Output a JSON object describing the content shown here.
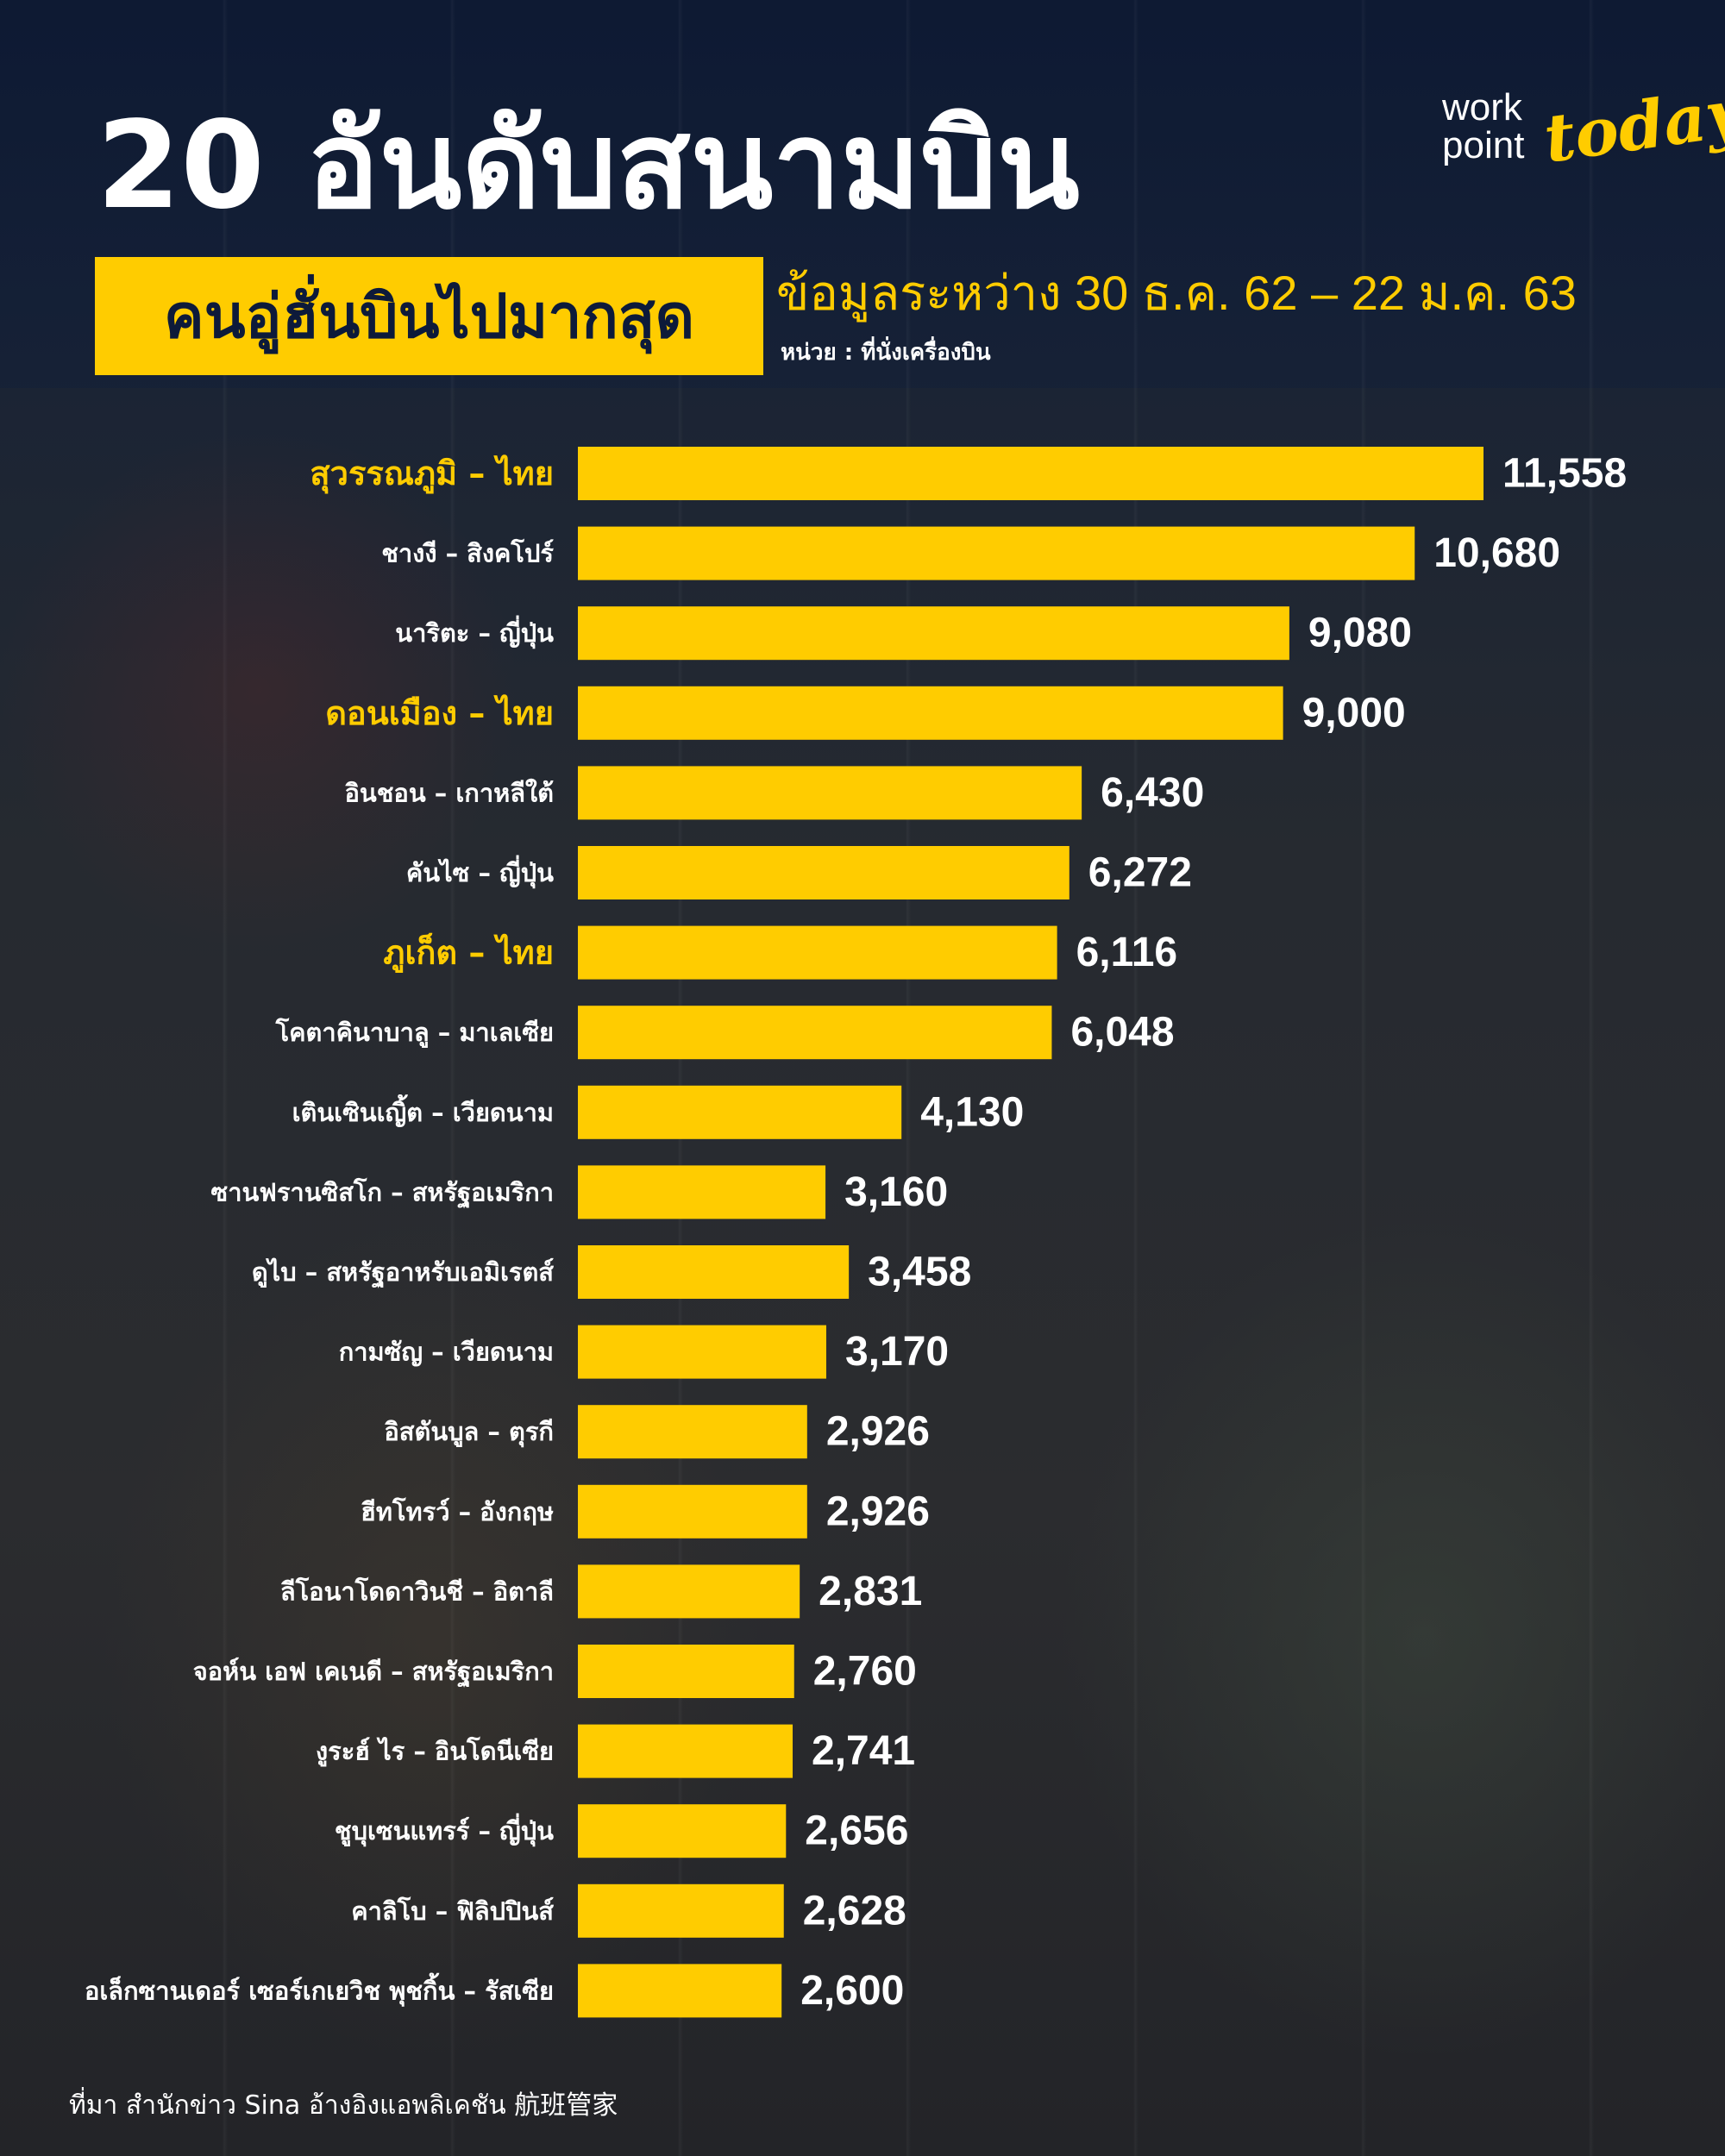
{
  "header": {
    "title": "20 อันดับสนามบิน",
    "subtitle": "คนอู่ฮั่นบินไปมากสุด",
    "period": "ข้อมูลระหว่าง 30 ธ.ค. 62 – 22 ม.ค. 63",
    "unit": "หน่วย : ที่นั่งเครื่องบิน"
  },
  "logo": {
    "work": "work",
    "point": "point",
    "today": "today"
  },
  "footer": {
    "source": "ที่มา สำนักข่าว Sina อ้างอิงแอพลิเคชัน 航班管家"
  },
  "colors": {
    "accent": "#ffcc00",
    "bar": "#ffcc00",
    "label": "#ffffff",
    "highlight_label": "#ffcc00",
    "value": "#ffffff"
  },
  "chart_data": {
    "type": "bar",
    "orientation": "horizontal",
    "title": "20 อันดับสนามบิน คนอู่ฮั่นบินไปมากสุด",
    "xlabel": "",
    "ylabel": "",
    "xlim": [
      0,
      11558
    ],
    "grid": false,
    "legend": "none",
    "categories": [
      "สุวรรณภูมิ – ไทย",
      "ชางงี – สิงคโปร์",
      "นาริตะ – ญี่ปุ่น",
      "ดอนเมือง – ไทย",
      "อินชอน – เกาหลีใต้",
      "คันไซ – ญี่ปุ่น",
      "ภูเก็ต – ไทย",
      "โคตาคินาบาลู – มาเลเซีย",
      "เตินเซินเญิ้ต – เวียดนาม",
      "ซานฟรานซิสโก – สหรัฐอเมริกา",
      "ดูไบ – สหรัฐอาหรับเอมิเรตส์",
      "กามซัญ – เวียดนาม",
      "อิสตันบูล – ตุรกี",
      "ฮีทโทรว์ – อังกฤษ",
      "ลีโอนาโดดาวินชี – อิตาลี",
      "จอห์น เอฟ เคเนดี – สหรัฐอเมริกา",
      "งูระฮ์ ไร – อินโดนีเซีย",
      "ชูบุเซนแทรร์ – ญี่ปุ่น",
      "คาลิโบ – ฟิลิปปินส์",
      "อเล็กซานเดอร์ เซอร์เกเยวิช พุชกิ้น – รัสเซีย"
    ],
    "values": [
      11558,
      10680,
      9080,
      9000,
      6430,
      6272,
      6116,
      6048,
      4130,
      3160,
      3458,
      3170,
      2926,
      2926,
      2831,
      2760,
      2741,
      2656,
      2628,
      2600
    ],
    "value_labels": [
      "11,558",
      "10,680",
      "9,080",
      "9,000",
      "6,430",
      "6,272",
      "6,116",
      "6,048",
      "4,130",
      "3,160",
      "3,458",
      "3,170",
      "2,926",
      "2,926",
      "2,831",
      "2,760",
      "2,741",
      "2,656",
      "2,628",
      "2,600"
    ],
    "highlighted": [
      true,
      false,
      false,
      true,
      false,
      false,
      true,
      false,
      false,
      false,
      false,
      false,
      false,
      false,
      false,
      false,
      false,
      false,
      false,
      false
    ]
  }
}
